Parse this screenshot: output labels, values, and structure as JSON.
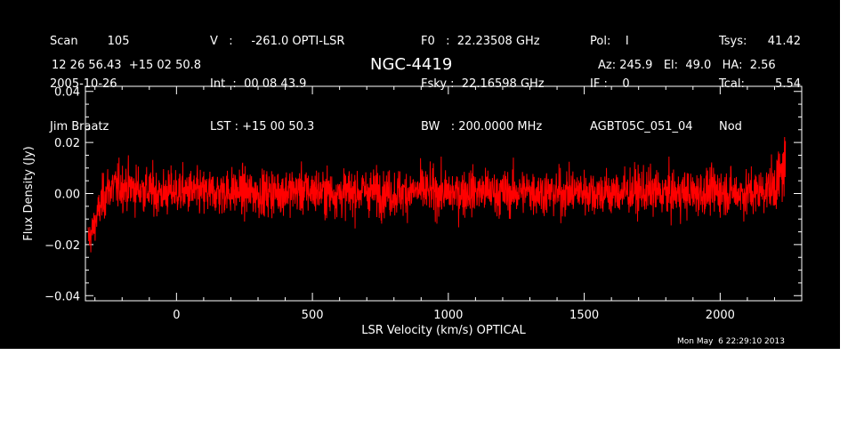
{
  "header": {
    "col1": [
      "Scan        105",
      "2005-10-26",
      "Jim Braatz"
    ],
    "col2": [
      "V   :     -261.0 OPTI-LSR",
      "Int  :  00 08 43.9",
      "LST : +15 00 50.3"
    ],
    "col3": [
      "F0   :  22.23508 GHz",
      "Fsky :  22.16598 GHz",
      "BW   : 200.0000 MHz"
    ],
    "col4": [
      "Pol:    I",
      "IF :    0",
      "AGBT05C_051_04"
    ],
    "col5": [
      "Tsys:",
      "Tcal:",
      "Nod"
    ],
    "col6": [
      "41.42",
      "5.54",
      ""
    ],
    "coords": "12 26 56.43  +15 02 50.8",
    "object": "NGC-4419",
    "az_el_ha": "Az: 245.9   El:  49.0   HA:  2.56"
  },
  "timestamp": "Mon May  6 22:29:10 2013",
  "colors": {
    "background": "#000000",
    "foreground": "#ffffff",
    "trace": "#ff0000"
  },
  "chart_data": {
    "type": "line",
    "title": "NGC-4419",
    "xlabel": "LSR Velocity (km/s) OPTICAL",
    "ylabel": "Flux Density (Jy)",
    "xlim": [
      -335,
      2300
    ],
    "ylim": [
      -0.042,
      0.042
    ],
    "xticks": [
      0,
      500,
      1000,
      1500,
      2000
    ],
    "xtick_labels": [
      "0",
      "500",
      "1000",
      "1500",
      "2000"
    ],
    "yticks": [
      -0.04,
      -0.02,
      0.0,
      0.02,
      0.04
    ],
    "ytick_labels": [
      "−0.04",
      "−0.02",
      "0.00",
      "0.02",
      "0.04"
    ],
    "grid": false,
    "series": [
      {
        "color": "#ff0000",
        "x_range": [
          -325,
          2240
        ],
        "x": [
          -325,
          -310,
          -290,
          -270,
          -250,
          -200,
          -150,
          -100,
          -50,
          0,
          100,
          200,
          300,
          400,
          500,
          600,
          700,
          800,
          900,
          1000,
          1100,
          1200,
          1300,
          1400,
          1500,
          1600,
          1700,
          1800,
          1900,
          2000,
          2100,
          2150,
          2200,
          2220,
          2240
        ],
        "y": [
          -0.018,
          -0.015,
          -0.008,
          -0.002,
          0.002,
          0.003,
          0.002,
          0.001,
          0.0,
          0.001,
          0.0,
          0.001,
          0.0,
          0.001,
          0.001,
          0.0,
          0.001,
          0.0,
          0.001,
          0.0,
          0.001,
          0.0,
          0.001,
          0.0,
          0.001,
          0.0,
          0.001,
          0.0,
          0.0,
          0.001,
          0.0,
          0.001,
          0.003,
          0.006,
          0.012
        ],
        "noise_rms": 0.0045
      }
    ]
  }
}
